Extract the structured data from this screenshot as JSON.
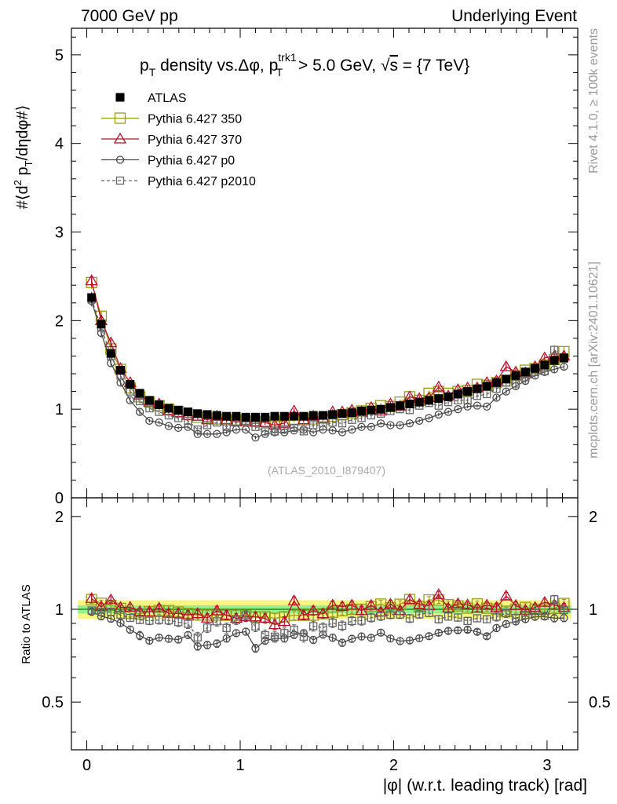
{
  "header": {
    "left": "7000 GeV pp",
    "right": "Underlying Event"
  },
  "side_labels": {
    "rivet": "Rivet 4.1.0, ≥ 100k events",
    "mcplots": "mcplots.cern.ch [arXiv:2401.10621]"
  },
  "watermark": "(ATLAS_2010_I879407)",
  "title": {
    "p": "p",
    "T": "T",
    "mid": " density vs.Δφ, p",
    "trk1": "trk1",
    "cut": " > 5.0 GeV, ",
    "sqrt": "√",
    "s": "s",
    "energy": " = {7 TeV}"
  },
  "ylabel_main": {
    "a": "#⟨d",
    "sup2": "2",
    "b": " p",
    "subT": "T",
    "c": "/dηdφ#⟩"
  },
  "ylabel_ratio": "Ratio to ATLAS",
  "xlabel": "|φ| (w.r.t. leading track) [rad]",
  "legend": [
    {
      "label": "ATLAS",
      "color": "#000000",
      "marker": "filled-square",
      "line": "none"
    },
    {
      "label": "Pythia 6.427 350",
      "color": "#9a9a1c",
      "marker": "open-square",
      "line": "solid"
    },
    {
      "label": "Pythia 6.427 370",
      "color": "#b3142a",
      "marker": "open-triangle",
      "line": "solid"
    },
    {
      "label": "Pythia 6.427 p0",
      "color": "#4a4a4a",
      "marker": "open-circle",
      "line": "solid"
    },
    {
      "label": "Pythia 6.427 p2010",
      "color": "#666666",
      "marker": "open-square-small",
      "line": "dashed"
    }
  ],
  "chart_data": {
    "type": "scatter",
    "xlabel": "|φ| (w.r.t. leading track) [rad]",
    "ylabel": "#⟨d2 pT/dηdφ#⟩",
    "xlim": [
      -0.1,
      3.2
    ],
    "ylim": [
      0,
      5.3
    ],
    "xticks": [
      "0",
      "1",
      "2",
      "3"
    ],
    "yticks": [
      "0",
      "1",
      "2",
      "3",
      "4",
      "5"
    ],
    "ratio_ylim": [
      0.35,
      2.3
    ],
    "ratio_yticks": [
      "0.5",
      "1",
      "2"
    ],
    "ratio_ylabel": "Ratio to ATLAS",
    "x": [
      0.0314,
      0.0942,
      0.1571,
      0.2199,
      0.2827,
      0.3456,
      0.4084,
      0.4712,
      0.5341,
      0.5969,
      0.6597,
      0.7226,
      0.7854,
      0.8482,
      0.9111,
      0.9739,
      1.0367,
      1.0996,
      1.1624,
      1.2252,
      1.2881,
      1.3509,
      1.4137,
      1.4765,
      1.5394,
      1.6022,
      1.665,
      1.7279,
      1.7907,
      1.8535,
      1.9164,
      1.9792,
      2.042,
      2.1049,
      2.1677,
      2.2305,
      2.2934,
      2.3562,
      2.419,
      2.4819,
      2.5447,
      2.6075,
      2.6704,
      2.7332,
      2.796,
      2.8588,
      2.9217,
      2.9845,
      3.0473,
      3.1102
    ],
    "series": [
      {
        "name": "ATLAS",
        "values": [
          2.26,
          1.96,
          1.63,
          1.44,
          1.28,
          1.18,
          1.1,
          1.05,
          1.01,
          0.99,
          0.97,
          0.95,
          0.94,
          0.93,
          0.92,
          0.92,
          0.91,
          0.91,
          0.91,
          0.92,
          0.92,
          0.92,
          0.92,
          0.93,
          0.93,
          0.94,
          0.95,
          0.96,
          0.98,
          0.99,
          1.0,
          1.02,
          1.04,
          1.06,
          1.08,
          1.1,
          1.12,
          1.14,
          1.17,
          1.2,
          1.23,
          1.26,
          1.3,
          1.34,
          1.38,
          1.42,
          1.46,
          1.5,
          1.55,
          1.58
        ],
        "errors": [
          0.06,
          0.05,
          0.04,
          0.03,
          0.03,
          0.02,
          0.02,
          0.02,
          0.02,
          0.02,
          0.02,
          0.02,
          0.02,
          0.02,
          0.02,
          0.02,
          0.02,
          0.02,
          0.02,
          0.02,
          0.02,
          0.02,
          0.02,
          0.02,
          0.02,
          0.02,
          0.02,
          0.02,
          0.02,
          0.02,
          0.02,
          0.02,
          0.02,
          0.02,
          0.02,
          0.02,
          0.02,
          0.02,
          0.02,
          0.02,
          0.03,
          0.03,
          0.03,
          0.03,
          0.03,
          0.03,
          0.03,
          0.03,
          0.04,
          0.04
        ]
      },
      {
        "name": "Pythia 6.427 350",
        "values": [
          2.43,
          2.05,
          1.68,
          1.45,
          1.24,
          1.14,
          1.08,
          1.04,
          1.0,
          0.97,
          0.94,
          0.91,
          0.9,
          0.89,
          0.88,
          0.88,
          0.87,
          0.86,
          0.86,
          0.86,
          0.87,
          0.88,
          0.88,
          0.89,
          0.9,
          0.92,
          0.94,
          0.96,
          0.98,
          1.01,
          1.04,
          1.03,
          1.08,
          1.14,
          1.1,
          1.18,
          1.2,
          1.18,
          1.2,
          1.21,
          1.28,
          1.27,
          1.3,
          1.32,
          1.38,
          1.44,
          1.46,
          1.5,
          1.56,
          1.65
        ],
        "errors": [
          0.07,
          0.05,
          0.04,
          0.03,
          0.03,
          0.03,
          0.03,
          0.03,
          0.03,
          0.03,
          0.03,
          0.03,
          0.03,
          0.03,
          0.03,
          0.03,
          0.03,
          0.03,
          0.03,
          0.03,
          0.03,
          0.03,
          0.03,
          0.03,
          0.03,
          0.03,
          0.03,
          0.03,
          0.03,
          0.03,
          0.03,
          0.03,
          0.03,
          0.03,
          0.03,
          0.03,
          0.03,
          0.03,
          0.03,
          0.03,
          0.03,
          0.03,
          0.04,
          0.04,
          0.04,
          0.04,
          0.04,
          0.04,
          0.05,
          0.05
        ]
      },
      {
        "name": "Pythia 6.427 370",
        "values": [
          2.45,
          2.0,
          1.75,
          1.46,
          1.3,
          1.16,
          1.08,
          1.06,
          0.98,
          0.96,
          0.93,
          0.92,
          0.88,
          0.92,
          0.88,
          0.86,
          0.86,
          0.86,
          0.85,
          0.82,
          0.84,
          0.98,
          0.88,
          0.92,
          0.9,
          0.97,
          0.97,
          0.99,
          0.97,
          1.02,
          0.98,
          1.06,
          1.03,
          1.14,
          1.12,
          1.13,
          1.25,
          1.15,
          1.22,
          1.24,
          1.24,
          1.3,
          1.32,
          1.48,
          1.42,
          1.41,
          1.48,
          1.58,
          1.6,
          1.6
        ],
        "errors": [
          0.07,
          0.05,
          0.04,
          0.03,
          0.03,
          0.03,
          0.03,
          0.03,
          0.03,
          0.03,
          0.03,
          0.03,
          0.03,
          0.03,
          0.03,
          0.03,
          0.03,
          0.03,
          0.03,
          0.03,
          0.03,
          0.03,
          0.03,
          0.03,
          0.03,
          0.03,
          0.03,
          0.03,
          0.03,
          0.03,
          0.03,
          0.03,
          0.03,
          0.03,
          0.03,
          0.03,
          0.03,
          0.03,
          0.03,
          0.03,
          0.03,
          0.03,
          0.04,
          0.04,
          0.04,
          0.04,
          0.04,
          0.04,
          0.05,
          0.05
        ]
      },
      {
        "name": "Pythia 6.427 p0",
        "values": [
          2.22,
          1.86,
          1.52,
          1.3,
          1.1,
          0.97,
          0.87,
          0.85,
          0.81,
          0.79,
          0.8,
          0.72,
          0.72,
          0.72,
          0.74,
          0.77,
          0.77,
          0.68,
          0.72,
          0.74,
          0.74,
          0.76,
          0.77,
          0.74,
          0.77,
          0.76,
          0.74,
          0.77,
          0.8,
          0.8,
          0.84,
          0.82,
          0.82,
          0.84,
          0.87,
          0.9,
          0.94,
          0.97,
          1.0,
          1.03,
          1.04,
          1.03,
          1.13,
          1.2,
          1.26,
          1.32,
          1.38,
          1.42,
          1.45,
          1.48
        ],
        "errors": [
          0.06,
          0.05,
          0.04,
          0.03,
          0.03,
          0.03,
          0.02,
          0.02,
          0.02,
          0.02,
          0.02,
          0.02,
          0.02,
          0.02,
          0.02,
          0.02,
          0.02,
          0.02,
          0.02,
          0.02,
          0.02,
          0.02,
          0.02,
          0.02,
          0.02,
          0.02,
          0.02,
          0.02,
          0.02,
          0.02,
          0.02,
          0.02,
          0.02,
          0.02,
          0.02,
          0.02,
          0.02,
          0.02,
          0.02,
          0.02,
          0.02,
          0.02,
          0.03,
          0.03,
          0.03,
          0.03,
          0.03,
          0.03,
          0.04,
          0.04
        ]
      },
      {
        "name": "Pythia 6.427 p2010",
        "values": [
          2.24,
          1.92,
          1.6,
          1.38,
          1.2,
          1.09,
          1.01,
          0.97,
          0.93,
          0.9,
          0.87,
          0.77,
          0.82,
          0.85,
          0.8,
          0.85,
          0.87,
          0.8,
          0.75,
          0.75,
          0.77,
          0.79,
          0.75,
          0.82,
          0.81,
          0.85,
          0.84,
          0.88,
          0.9,
          0.93,
          0.95,
          0.98,
          1.0,
          0.99,
          1.04,
          1.07,
          1.04,
          1.08,
          1.1,
          1.1,
          1.15,
          1.17,
          1.23,
          1.3,
          1.29,
          1.36,
          1.42,
          1.43,
          1.67,
          1.57
        ],
        "errors": [
          0.06,
          0.05,
          0.04,
          0.03,
          0.03,
          0.03,
          0.03,
          0.03,
          0.03,
          0.03,
          0.03,
          0.03,
          0.03,
          0.03,
          0.03,
          0.03,
          0.03,
          0.03,
          0.03,
          0.03,
          0.03,
          0.03,
          0.03,
          0.03,
          0.03,
          0.03,
          0.03,
          0.03,
          0.03,
          0.03,
          0.03,
          0.03,
          0.03,
          0.03,
          0.03,
          0.03,
          0.03,
          0.03,
          0.03,
          0.03,
          0.03,
          0.03,
          0.04,
          0.04,
          0.04,
          0.04,
          0.04,
          0.04,
          0.05,
          0.05
        ]
      }
    ],
    "ratio_bands": {
      "inner": 0.03,
      "outer": 0.07
    }
  }
}
